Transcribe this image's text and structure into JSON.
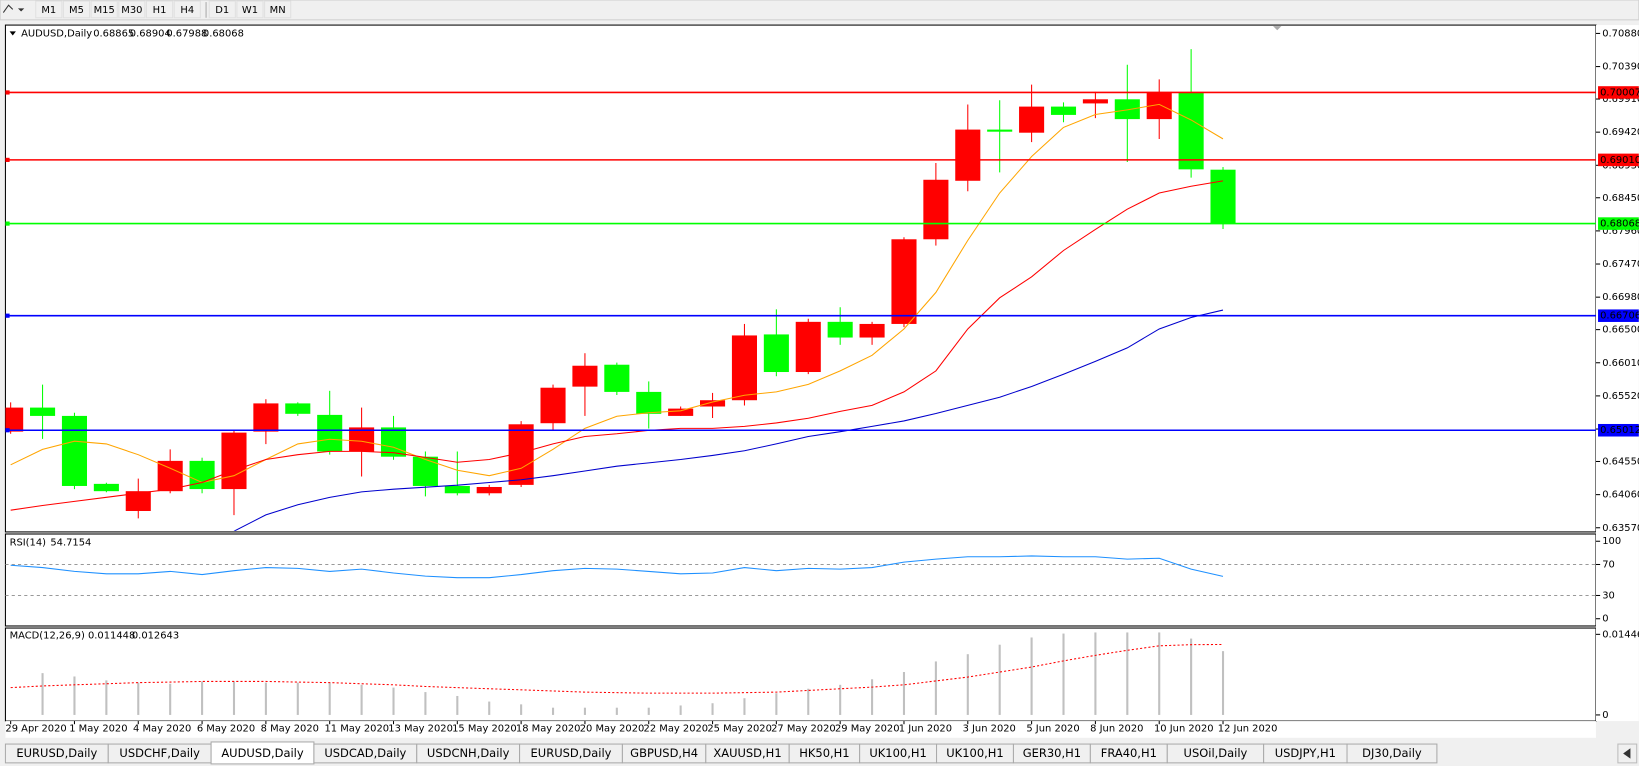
{
  "toolbar": {
    "timeframes": [
      "M1",
      "M5",
      "M15",
      "M30",
      "H1",
      "H4",
      "D1",
      "W1",
      "MN"
    ]
  },
  "chart_data": [
    {
      "type": "candlestick",
      "title": "AUDUSD,Daily",
      "categories": [
        "29 Apr 2020",
        null,
        "1 May 2020",
        null,
        "4 May 2020",
        null,
        "6 May 2020",
        null,
        "8 May 2020",
        null,
        "11 May 2020",
        null,
        "13 May 2020",
        null,
        "15 May 2020",
        null,
        "18 May 2020",
        null,
        "20 May 2020",
        null,
        "22 May 2020",
        null,
        "25 May 2020",
        null,
        "27 May 2020",
        null,
        "29 May 2020",
        null,
        "1 Jun 2020",
        null,
        "3 Jun 2020",
        null,
        "5 Jun 2020",
        null,
        "8 Jun 2020",
        null,
        "10 Jun 2020",
        null,
        "12 Jun 2020"
      ],
      "open": [
        0.64992,
        0.65347,
        0.65224,
        0.64219,
        0.63818,
        0.64111,
        0.64559,
        0.64142,
        0.64992,
        0.65409,
        0.65239,
        0.64698,
        0.65054,
        0.64621,
        0.64188,
        0.6408,
        0.64204,
        0.65116,
        0.65657,
        0.65981,
        0.65579,
        0.65224,
        0.65363,
        0.65456,
        0.66429,
        0.65873,
        0.66615,
        0.66383,
        0.66584,
        0.67836,
        0.68701,
        0.69458,
        0.69412,
        0.69798,
        0.69845,
        0.69906,
        0.69613,
        0.70015,
        0.68865
      ],
      "high": [
        0.65425,
        0.65687,
        0.6527,
        0.64235,
        0.64297,
        0.64729,
        0.64606,
        0.65007,
        0.65471,
        0.65425,
        0.65595,
        0.65347,
        0.65224,
        0.64698,
        0.64698,
        0.64204,
        0.65147,
        0.65687,
        0.66151,
        0.66012,
        0.65734,
        0.65363,
        0.65564,
        0.66584,
        0.668,
        0.66661,
        0.66831,
        0.66615,
        0.67866,
        0.68964,
        0.69829,
        0.69891,
        0.70123,
        0.6986,
        0.70015,
        0.70416,
        0.702,
        0.70648,
        0.68904
      ],
      "low": [
        0.64961,
        0.64884,
        0.64142,
        0.64096,
        0.63709,
        0.6408,
        0.6408,
        0.63756,
        0.64807,
        0.65224,
        0.64652,
        0.64328,
        0.64575,
        0.64034,
        0.64049,
        0.64049,
        0.64173,
        0.65007,
        0.65224,
        0.65533,
        0.65038,
        0.65224,
        0.65193,
        0.65378,
        0.65811,
        0.65842,
        0.66275,
        0.66275,
        0.66537,
        0.67743,
        0.68546,
        0.68825,
        0.69273,
        0.69566,
        0.69628,
        0.68979,
        0.69319,
        0.68747,
        0.67988
      ],
      "close": [
        0.65347,
        0.65224,
        0.64188,
        0.64111,
        0.64111,
        0.64559,
        0.64142,
        0.64977,
        0.65409,
        0.65255,
        0.64698,
        0.65054,
        0.64621,
        0.64188,
        0.6408,
        0.64173,
        0.651,
        0.65641,
        0.65966,
        0.65579,
        0.65255,
        0.65332,
        0.65456,
        0.66414,
        0.65873,
        0.66615,
        0.66383,
        0.66584,
        0.67836,
        0.68716,
        0.69458,
        0.69427,
        0.69798,
        0.69675,
        0.69906,
        0.69613,
        0.70015,
        0.6887,
        0.68068
      ],
      "up_color": "#ff0000",
      "down_color": "#00ff00",
      "overlays": [
        {
          "color": "#ffa500",
          "values": [
            0.645,
            0.6473,
            0.6485,
            0.6481,
            0.6465,
            0.6445,
            0.6424,
            0.6434,
            0.6458,
            0.6481,
            0.6488,
            0.6485,
            0.6476,
            0.6458,
            0.6442,
            0.6434,
            0.6445,
            0.6473,
            0.6504,
            0.6522,
            0.6527,
            0.653,
            0.6543,
            0.6553,
            0.6558,
            0.6569,
            0.6589,
            0.6612,
            0.6651,
            0.6705,
            0.6782,
            0.6852,
            0.6906,
            0.6949,
            0.6968,
            0.6975,
            0.6983,
            0.696,
            0.6932
          ]
        },
        {
          "color": "#ff0000",
          "values": [
            0.6383,
            0.639,
            0.6396,
            0.6402,
            0.6408,
            0.6414,
            0.6424,
            0.6442,
            0.6458,
            0.6465,
            0.647,
            0.647,
            0.6468,
            0.6461,
            0.6454,
            0.6458,
            0.6468,
            0.6481,
            0.6492,
            0.6496,
            0.6501,
            0.6504,
            0.6504,
            0.6507,
            0.6512,
            0.6519,
            0.6529,
            0.6538,
            0.6558,
            0.6589,
            0.6651,
            0.6697,
            0.6728,
            0.6767,
            0.6798,
            0.6828,
            0.6852,
            0.6862,
            0.687
          ]
        },
        {
          "color": "#0000cd",
          "values": [
            null,
            null,
            null,
            null,
            null,
            null,
            null,
            0.6352,
            0.6376,
            0.6391,
            0.6402,
            0.641,
            0.6414,
            0.6417,
            0.642,
            0.6424,
            0.6428,
            0.6434,
            0.6441,
            0.6448,
            0.6453,
            0.6458,
            0.6464,
            0.6471,
            0.6481,
            0.6492,
            0.6499,
            0.6507,
            0.6515,
            0.6526,
            0.6538,
            0.655,
            0.6566,
            0.6584,
            0.6603,
            0.6623,
            0.6651,
            0.6668,
            0.6679
          ]
        }
      ],
      "levels": [
        {
          "value": 0.70007,
          "color": "#ff0000"
        },
        {
          "value": 0.6901,
          "label": "0.69010",
          "color": "#ff0000"
        },
        {
          "value": 0.68068,
          "color": "#00ff00"
        },
        {
          "value": 0.66706,
          "color": "#0000ff"
        },
        {
          "value": 0.65012,
          "color": "#0000ff"
        }
      ],
      "ylim": [
        0.63524,
        0.70988
      ],
      "yticks": [
        {
          "value": 0.7088,
          "label": "0.70880"
        },
        {
          "value": 0.7039,
          "label": "0.70390"
        },
        {
          "value": 0.6991,
          "label": "0.69910"
        },
        {
          "value": 0.6942,
          "label": "0.69420"
        },
        {
          "value": 0.6893,
          "label": "0.68930"
        },
        {
          "value": 0.6845,
          "label": "0.68450"
        },
        {
          "value": 0.6796,
          "label": "0.67960"
        },
        {
          "value": 0.6747,
          "label": "0.67470"
        },
        {
          "value": 0.6698,
          "label": "0.66980"
        },
        {
          "value": 0.665,
          "label": "0.66500"
        },
        {
          "value": 0.6601,
          "label": "0.66010"
        },
        {
          "value": 0.6552,
          "label": "0.65520"
        },
        {
          "value": 0.6503,
          "label": "0.65030"
        },
        {
          "value": 0.6455,
          "label": "0.64550"
        },
        {
          "value": 0.6406,
          "label": "0.64060"
        },
        {
          "value": 0.6357,
          "label": "0.63570"
        }
      ]
    },
    {
      "type": "line",
      "title": "RSI(14)",
      "color": "#1e90ff",
      "values": [
        69,
        66,
        61,
        58,
        58,
        61,
        57,
        62,
        66,
        65,
        61,
        64,
        59,
        55,
        53,
        53,
        57,
        62,
        65,
        64,
        61,
        58,
        59,
        66,
        62,
        65,
        64,
        66,
        73,
        77,
        80,
        80,
        81,
        80,
        80,
        77,
        78,
        64,
        54.7154
      ],
      "ylim": [
        -8,
        108
      ],
      "yticks": [
        0,
        30,
        70,
        100
      ]
    },
    {
      "type": "macd",
      "title": "MACD(12,26,9)",
      "color": "#c0c0c0",
      "signal_color": "#ff0000",
      "values": [
        null,
        0.0075,
        0.0069,
        0.0062,
        0.0058,
        0.0056,
        0.006,
        0.006,
        0.0058,
        0.0058,
        0.0058,
        0.0054,
        0.0049,
        0.0041,
        0.0034,
        0.0024,
        0.0019,
        0.0013,
        0.0013,
        0.0013,
        0.0013,
        0.0017,
        0.0021,
        0.003,
        0.0039,
        0.0047,
        0.0054,
        0.0064,
        0.0077,
        0.0096,
        0.0109,
        0.0126,
        0.0139,
        0.0146,
        0.0148,
        0.0148,
        0.0148,
        0.0137,
        0.011448
      ],
      "signal": [
        0.0049,
        0.0052,
        0.0054,
        0.0056,
        0.0058,
        0.0059,
        0.006,
        0.006,
        0.006,
        0.0059,
        0.0058,
        0.0056,
        0.0054,
        0.0051,
        0.0049,
        0.0047,
        0.0045,
        0.0043,
        0.0041,
        0.004,
        0.0039,
        0.0039,
        0.0039,
        0.004,
        0.0041,
        0.0044,
        0.0047,
        0.005,
        0.0054,
        0.0061,
        0.0068,
        0.0077,
        0.0086,
        0.0097,
        0.0107,
        0.0116,
        0.0124,
        0.0126,
        0.012643
      ],
      "ylim": [
        -0.0011,
        0.0154
      ],
      "yticks": [
        0,
        0.01446
      ]
    }
  ],
  "tabs": {
    "items": [
      "EURUSD,Daily",
      "USDCHF,Daily",
      "AUDUSD,Daily",
      "USDCAD,Daily",
      "USDCNH,Daily",
      "EURUSD,Daily",
      "GBPUSD,H4",
      "XAUUSD,H1",
      "HK50,H1",
      "UK100,H1",
      "UK100,H1",
      "GER30,H1",
      "FRA40,H1",
      "USOil,Daily",
      "USDJPY,H1",
      "DJ30,Daily"
    ],
    "active": 2
  }
}
